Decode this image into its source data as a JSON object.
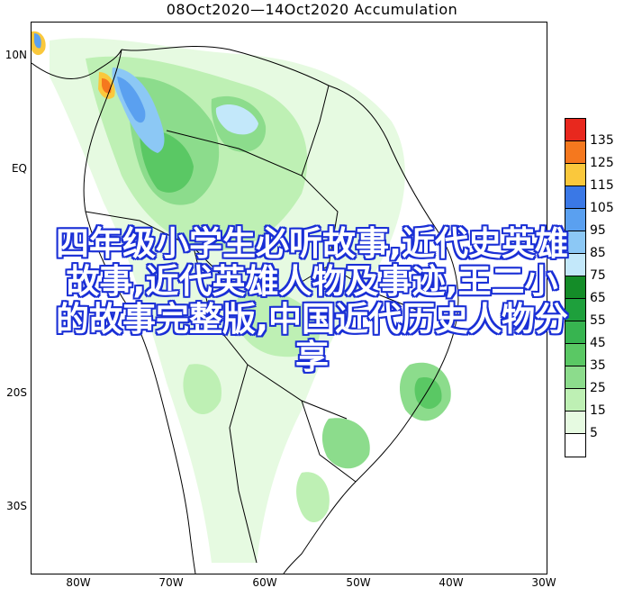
{
  "map": {
    "title": "08Oct2020—14Oct2020 Accumulation",
    "lat_labels": [
      "10N",
      "EQ",
      "20S",
      "30S"
    ],
    "lon_labels": [
      "80W",
      "70W",
      "60W",
      "50W",
      "40W",
      "30W"
    ]
  },
  "legend": {
    "levels": [
      {
        "label": "135",
        "color": "#e8281e"
      },
      {
        "label": "125",
        "color": "#f5781e"
      },
      {
        "label": "115",
        "color": "#fac83c"
      },
      {
        "label": "105",
        "color": "#3a78e6"
      },
      {
        "label": "95",
        "color": "#5aa0f0"
      },
      {
        "label": "85",
        "color": "#8cc8f5"
      },
      {
        "label": "75",
        "color": "#c3e8fa"
      },
      {
        "label": "65",
        "color": "#148c28"
      },
      {
        "label": "55",
        "color": "#1ea03c"
      },
      {
        "label": "45",
        "color": "#37b450"
      },
      {
        "label": "35",
        "color": "#5ac864"
      },
      {
        "label": "25",
        "color": "#8cdc8c"
      },
      {
        "label": "15",
        "color": "#bef0b4"
      },
      {
        "label": "5",
        "color": "#e6fae1"
      },
      {
        "label": "",
        "color": "#ffffff"
      }
    ]
  },
  "overlay": {
    "line1": "四年级小学生必听故事,近代史英雄",
    "line2": "故事,近代英雄人物及事迹,王二小",
    "line3": "的故事完整版,中国近代历史人物分",
    "line4": "享"
  }
}
